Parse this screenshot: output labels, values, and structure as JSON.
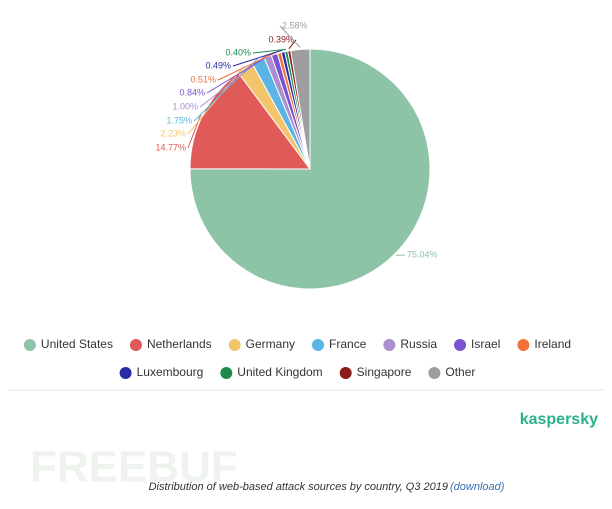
{
  "chart_data": {
    "type": "pie",
    "categories": [
      "United States",
      "Netherlands",
      "Germany",
      "France",
      "Russia",
      "Israel",
      "Ireland",
      "Luxembourg",
      "United Kingdom",
      "Singapore",
      "Other"
    ],
    "values": [
      75.04,
      14.77,
      2.23,
      1.75,
      1.0,
      0.84,
      0.51,
      0.49,
      0.4,
      0.39,
      2.58
    ],
    "value_labels": [
      "75.04%",
      "14.77%",
      "2.23%",
      "1.75%",
      "1.00%",
      "0.84%",
      "0.51%",
      "0.49%",
      "0.40%",
      "0.39%",
      "2.58%"
    ],
    "colors": [
      "#8dc3a7",
      "#e05a5a",
      "#f3c56b",
      "#5ab4e5",
      "#a98fd0",
      "#7b52d1",
      "#f0713a",
      "#2a2aa8",
      "#1e8a4e",
      "#8b1a1a",
      "#9e9e9e"
    ]
  },
  "brand": "kaspersky",
  "caption": "Distribution of web-based attack sources by country, Q3 2019",
  "caption_link": "(download)",
  "watermark": "FREEBUF"
}
